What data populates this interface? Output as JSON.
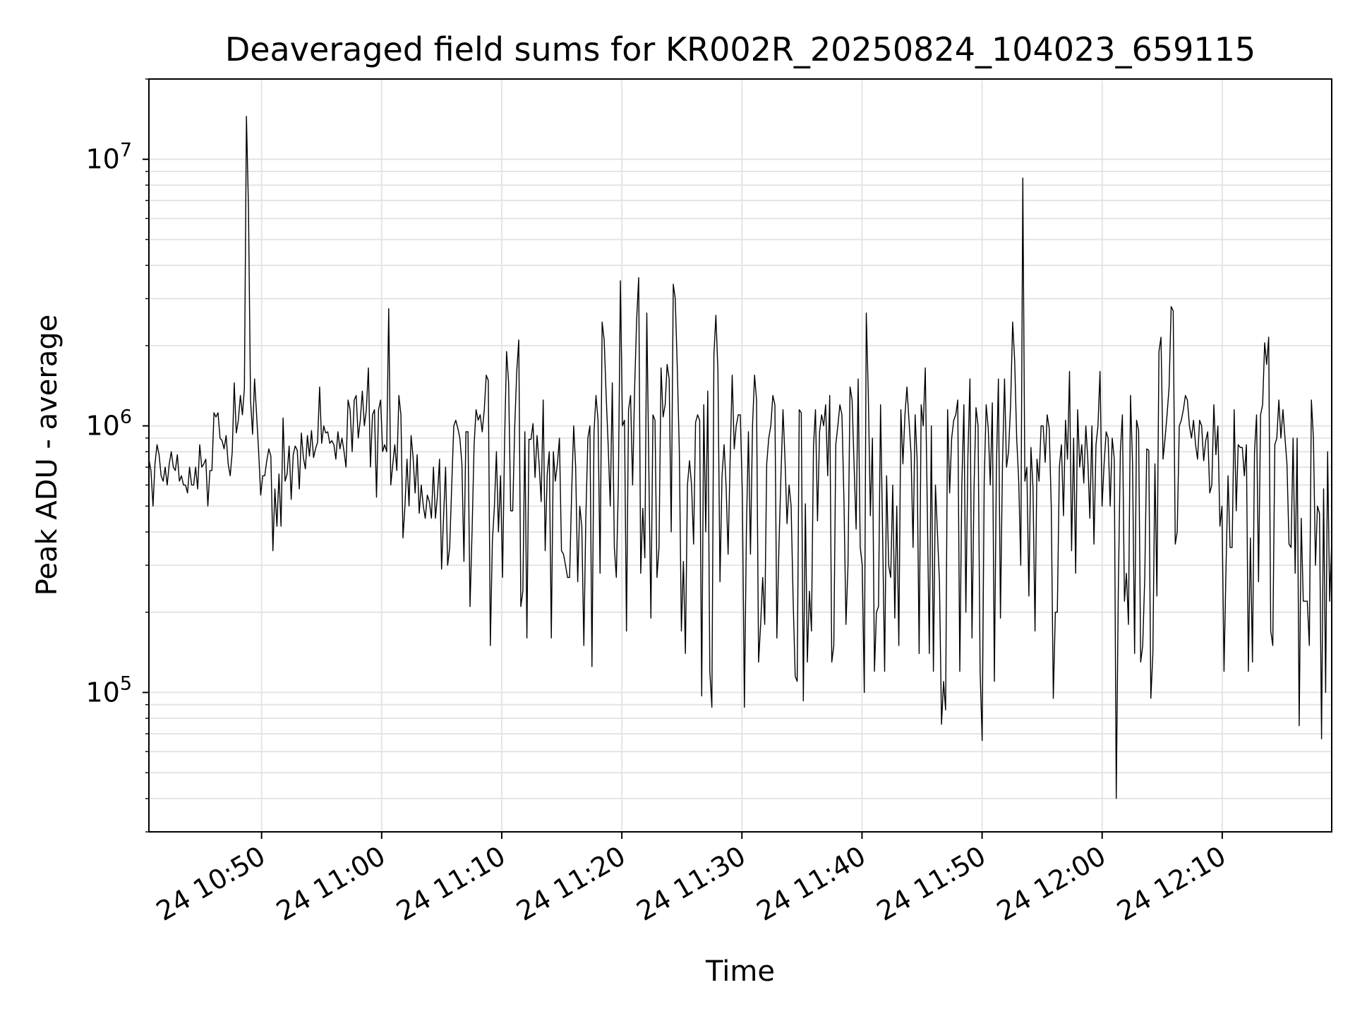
{
  "chart_data": {
    "type": "line",
    "title": "Deaveraged field sums for KR002R_20250824_104023_659115",
    "xlabel": "Time",
    "ylabel": "Peak ADU - average",
    "yscale": "log",
    "ylim": [
      30000,
      20000000
    ],
    "xlim": [
      "2025-08-24 10:40:37",
      "2025-08-24 12:19:07"
    ],
    "grid": true,
    "line_color": "#000000",
    "x_tick_labels": [
      "24 10:50",
      "24 11:00",
      "24 11:10",
      "24 11:20",
      "24 11:30",
      "24 11:40",
      "24 11:50",
      "24 12:00",
      "24 12:10"
    ],
    "y_tick_labels": [
      {
        "base": "10",
        "exp": "5",
        "value": 100000
      },
      {
        "base": "10",
        "exp": "6",
        "value": 1000000
      },
      {
        "base": "10",
        "exp": "7",
        "value": 10000000
      }
    ],
    "series": [
      {
        "x_start": "2025-08-24 10:40:37",
        "x_end": "2025-08-24 12:19:07",
        "values": [
          750000,
          680000,
          500000,
          720000,
          850000,
          780000,
          650000,
          620000,
          700000,
          600000,
          720000,
          800000,
          700000,
          680000,
          780000,
          620000,
          650000,
          600000,
          600000,
          560000,
          700000,
          600000,
          600000,
          700000,
          580000,
          850000,
          700000,
          720000,
          750000,
          500000,
          680000,
          680000,
          1120000,
          1080000,
          1120000,
          900000,
          880000,
          820000,
          920000,
          720000,
          650000,
          800000,
          1450000,
          940000,
          1050000,
          1300000,
          1100000,
          1380000,
          14500000,
          6500000,
          1250000,
          930000,
          1500000,
          1100000,
          800000,
          550000,
          650000,
          650000,
          740000,
          820000,
          770000,
          340000,
          580000,
          420000,
          660000,
          420000,
          1070000,
          620000,
          660000,
          840000,
          530000,
          780000,
          840000,
          810000,
          580000,
          940000,
          760000,
          690000,
          920000,
          770000,
          960000,
          760000,
          820000,
          870000,
          1400000,
          860000,
          1000000,
          940000,
          950000,
          860000,
          880000,
          850000,
          750000,
          950000,
          820000,
          900000,
          800000,
          700000,
          1250000,
          1150000,
          800000,
          1250000,
          1300000,
          900000,
          1050000,
          1350000,
          1000000,
          1150000,
          1650000,
          700000,
          1100000,
          1150000,
          540000,
          1150000,
          1250000,
          800000,
          850000,
          800000,
          2750000,
          600000,
          720000,
          850000,
          680000,
          1300000,
          1100000,
          380000,
          500000,
          750000,
          500000,
          920000,
          760000,
          560000,
          780000,
          470000,
          600000,
          500000,
          450000,
          550000,
          520000,
          450000,
          700000,
          450000,
          550000,
          750000,
          290000,
          460000,
          700000,
          300000,
          350000,
          600000,
          1000000,
          1050000,
          980000,
          900000,
          720000,
          310000,
          950000,
          950000,
          210000,
          400000,
          850000,
          1150000,
          1050000,
          1100000,
          950000,
          1150000,
          1550000,
          1480000,
          150000,
          370000,
          500000,
          800000,
          400000,
          650000,
          270000,
          880000,
          1900000,
          1450000,
          480000,
          480000,
          1000000,
          1600000,
          2100000,
          210000,
          240000,
          950000,
          160000,
          890000,
          890000,
          1020000,
          640000,
          920000,
          720000,
          520000,
          1250000,
          340000,
          660000,
          800000,
          160000,
          800000,
          620000,
          720000,
          900000,
          340000,
          330000,
          300000,
          270000,
          270000,
          560000,
          1000000,
          700000,
          260000,
          500000,
          420000,
          150000,
          450000,
          900000,
          1000000,
          125000,
          950000,
          1300000,
          1050000,
          280000,
          2450000,
          2100000,
          1300000,
          840000,
          500000,
          1450000,
          350000,
          270000,
          600000,
          3500000,
          1000000,
          1050000,
          170000,
          1150000,
          1300000,
          600000,
          1400000,
          2500000,
          3600000,
          280000,
          490000,
          320000,
          2650000,
          680000,
          190000,
          1100000,
          1050000,
          270000,
          350000,
          1650000,
          1080000,
          1200000,
          1700000,
          1500000,
          400000,
          3400000,
          3000000,
          1650000,
          800000,
          170000,
          310000,
          140000,
          600000,
          740000,
          600000,
          360000,
          1030000,
          1100000,
          1050000,
          97000,
          1200000,
          400000,
          1350000,
          120000,
          88000,
          1850000,
          2600000,
          1600000,
          260000,
          650000,
          850000,
          600000,
          330000,
          750000,
          1550000,
          820000,
          1000000,
          1100000,
          1100000,
          550000,
          88000,
          400000,
          950000,
          330000,
          1000000,
          1550000,
          1250000,
          130000,
          180000,
          270000,
          180000,
          720000,
          900000,
          1000000,
          1300000,
          1200000,
          160000,
          350000,
          650000,
          1150000,
          740000,
          430000,
          600000,
          500000,
          220000,
          115000,
          110000,
          1150000,
          1120000,
          93000,
          510000,
          130000,
          240000,
          170000,
          840000,
          1150000,
          440000,
          950000,
          1100000,
          1000000,
          1200000,
          650000,
          1300000,
          130000,
          150000,
          850000,
          1000000,
          1200000,
          1100000,
          520000,
          180000,
          300000,
          1400000,
          1250000,
          700000,
          410000,
          1500000,
          350000,
          300000,
          100000,
          2650000,
          1300000,
          460000,
          900000,
          120000,
          200000,
          210000,
          1200000,
          400000,
          120000,
          650000,
          300000,
          270000,
          600000,
          190000,
          500000,
          150000,
          1150000,
          720000,
          1100000,
          1400000,
          1050000,
          790000,
          350000,
          1100000,
          750000,
          140000,
          1200000,
          1000000,
          1650000,
          500000,
          140000,
          1000000,
          120000,
          600000,
          400000,
          260000,
          76000,
          110000,
          86000,
          1150000,
          560000,
          900000,
          1050000,
          1100000,
          1250000,
          120000,
          600000,
          1200000,
          200000,
          770000,
          1500000,
          160000,
          590000,
          1170000,
          1000000,
          120000,
          66000,
          620000,
          1200000,
          980000,
          600000,
          1220000,
          110000,
          680000,
          1500000,
          190000,
          720000,
          1500000,
          700000,
          800000,
          1200000,
          2450000,
          1750000,
          900000,
          620000,
          300000,
          8500000,
          620000,
          700000,
          230000,
          830000,
          590000,
          170000,
          750000,
          620000,
          1000000,
          1000000,
          730000,
          1100000,
          980000,
          500000,
          95000,
          200000,
          200000,
          700000,
          850000,
          460000,
          1050000,
          750000,
          1600000,
          340000,
          900000,
          280000,
          1150000,
          700000,
          850000,
          610000,
          1000000,
          750000,
          450000,
          1000000,
          360000,
          850000,
          1000000,
          1600000,
          500000,
          720000,
          950000,
          900000,
          500000,
          900000,
          750000,
          40000,
          240000,
          800000,
          1100000,
          220000,
          280000,
          180000,
          1300000,
          720000,
          140000,
          1050000,
          960000,
          130000,
          150000,
          270000,
          820000,
          810000,
          95000,
          140000,
          720000,
          230000,
          1900000,
          2150000,
          750000,
          900000,
          1100000,
          1400000,
          2800000,
          2700000,
          360000,
          400000,
          1000000,
          1050000,
          1150000,
          1300000,
          1250000,
          1000000,
          900000,
          1050000,
          850000,
          750000,
          1050000,
          1000000,
          740000,
          880000,
          950000,
          560000,
          600000,
          1200000,
          780000,
          1000000,
          420000,
          500000,
          120000,
          300000,
          650000,
          350000,
          350000,
          1150000,
          480000,
          850000,
          830000,
          830000,
          650000,
          850000,
          120000,
          380000,
          130000,
          800000,
          1100000,
          260000,
          1100000,
          1200000,
          2050000,
          1700000,
          2150000,
          170000,
          150000,
          850000,
          900000,
          1250000,
          900000,
          1150000,
          900000,
          720000,
          360000,
          350000,
          900000,
          280000,
          900000,
          75000,
          450000,
          220000,
          220000,
          220000,
          150000,
          1250000,
          900000,
          300000,
          500000,
          470000,
          67000,
          580000,
          100000,
          800000,
          220000,
          370000
        ]
      }
    ]
  }
}
